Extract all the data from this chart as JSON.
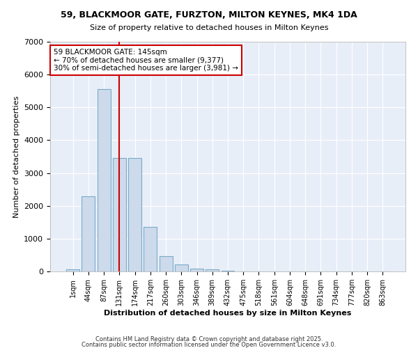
{
  "title1": "59, BLACKMOOR GATE, FURZTON, MILTON KEYNES, MK4 1DA",
  "title2": "Size of property relative to detached houses in Milton Keynes",
  "xlabel": "Distribution of detached houses by size in Milton Keynes",
  "ylabel": "Number of detached properties",
  "bar_color": "#ccdaeb",
  "bar_edge_color": "#7aaac8",
  "plot_bg_color": "#e8eef8",
  "fig_bg_color": "#ffffff",
  "grid_color": "#ffffff",
  "annotation_box_color": "#cc0000",
  "vline_color": "#cc0000",
  "categories": [
    "1sqm",
    "44sqm",
    "87sqm",
    "131sqm",
    "174sqm",
    "217sqm",
    "260sqm",
    "303sqm",
    "346sqm",
    "389sqm",
    "432sqm",
    "475sqm",
    "518sqm",
    "561sqm",
    "604sqm",
    "648sqm",
    "691sqm",
    "734sqm",
    "777sqm",
    "820sqm",
    "863sqm"
  ],
  "values": [
    70,
    2300,
    5550,
    3450,
    3450,
    1350,
    460,
    210,
    90,
    55,
    30,
    0,
    0,
    0,
    0,
    0,
    0,
    0,
    0,
    0,
    0
  ],
  "vline_x": 3,
  "annotation_text": "59 BLACKMOOR GATE: 145sqm\n← 70% of detached houses are smaller (9,377)\n30% of semi-detached houses are larger (3,981) →",
  "ylim": [
    0,
    7000
  ],
  "yticks": [
    0,
    1000,
    2000,
    3000,
    4000,
    5000,
    6000,
    7000
  ],
  "footer1": "Contains HM Land Registry data © Crown copyright and database right 2025.",
  "footer2": "Contains public sector information licensed under the Open Government Licence v3.0."
}
